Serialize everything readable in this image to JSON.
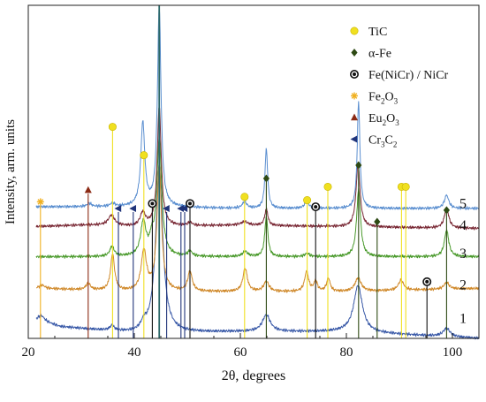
{
  "chart_data": {
    "type": "line",
    "title": "",
    "xlabel": "2θ, degrees",
    "ylabel": "Intensity, arm. units",
    "xlim": [
      20,
      105
    ],
    "x_ticks": [
      20,
      40,
      60,
      80,
      100
    ],
    "y_ticks": "none",
    "grid": false,
    "legend_position": "top-right",
    "series": [
      {
        "name": "1",
        "color": "#3a5aa8",
        "baseline": 0.05,
        "bg": [
          [
            20,
            0.05
          ],
          [
            22,
            0.055
          ],
          [
            26,
            0.035
          ],
          [
            40,
            0.015
          ],
          [
            60,
            0.02
          ],
          [
            80,
            0.02
          ],
          [
            105,
            0.0
          ]
        ],
        "peaks": [
          [
            22.5,
            0.015,
            0.7
          ],
          [
            35.8,
            0.015,
            0.5
          ],
          [
            41.8,
            0.02,
            0.6
          ],
          [
            44.7,
            0.5,
            0.8
          ],
          [
            64.9,
            0.05,
            0.9
          ],
          [
            82.2,
            0.14,
            1.0
          ],
          [
            98.9,
            0.025,
            0.8
          ]
        ]
      },
      {
        "name": "2",
        "color": "#d08a2c",
        "baseline": 0.15,
        "bg": [
          [
            20,
            0.15
          ],
          [
            22,
            0.15
          ],
          [
            40,
            0.14
          ],
          [
            60,
            0.14
          ],
          [
            80,
            0.14
          ],
          [
            105,
            0.15
          ]
        ],
        "peaks": [
          [
            22.6,
            0.01,
            0.6
          ],
          [
            31.3,
            0.02,
            0.5
          ],
          [
            35.9,
            0.11,
            0.45
          ],
          [
            41.8,
            0.12,
            0.6
          ],
          [
            44.7,
            0.38,
            0.5
          ],
          [
            50.5,
            0.06,
            0.5
          ],
          [
            60.9,
            0.07,
            0.5
          ],
          [
            64.9,
            0.03,
            0.6
          ],
          [
            72.5,
            0.06,
            0.45
          ],
          [
            74.2,
            0.03,
            0.4
          ],
          [
            76.6,
            0.04,
            0.4
          ],
          [
            82.2,
            0.04,
            0.7
          ],
          [
            90.3,
            0.03,
            0.6
          ],
          [
            98.9,
            0.02,
            0.6
          ]
        ]
      },
      {
        "name": "3",
        "color": "#4a9a2c",
        "baseline": 0.245,
        "bg": [
          [
            20,
            0.245
          ],
          [
            40,
            0.245
          ],
          [
            60,
            0.245
          ],
          [
            80,
            0.245
          ],
          [
            105,
            0.245
          ]
        ],
        "peaks": [
          [
            35.8,
            0.03,
            0.5
          ],
          [
            41.7,
            0.1,
            0.6
          ],
          [
            43.3,
            0.04,
            0.45
          ],
          [
            44.7,
            0.35,
            0.55
          ],
          [
            50.5,
            0.015,
            0.5
          ],
          [
            60.9,
            0.015,
            0.6
          ],
          [
            64.9,
            0.12,
            0.35
          ],
          [
            72.6,
            0.01,
            0.5
          ],
          [
            82.3,
            0.2,
            0.45
          ],
          [
            98.9,
            0.08,
            0.5
          ]
        ]
      },
      {
        "name": "4",
        "color": "#7a2a36",
        "baseline": 0.33,
        "bg": [
          [
            20,
            0.335
          ],
          [
            30,
            0.34
          ],
          [
            35,
            0.34
          ],
          [
            40,
            0.335
          ],
          [
            60,
            0.34
          ],
          [
            80,
            0.335
          ],
          [
            105,
            0.33
          ]
        ],
        "peaks": [
          [
            35.7,
            0.03,
            0.7
          ],
          [
            41.6,
            0.04,
            0.6
          ],
          [
            44.7,
            0.36,
            0.45
          ],
          [
            50.5,
            0.01,
            0.5
          ],
          [
            60.8,
            0.01,
            0.8
          ],
          [
            64.9,
            0.05,
            0.35
          ],
          [
            82.2,
            0.19,
            0.45
          ],
          [
            98.9,
            0.06,
            0.5
          ]
        ]
      },
      {
        "name": "5",
        "color": "#5b8fd0",
        "baseline": 0.395,
        "bg": [
          [
            20,
            0.395
          ],
          [
            40,
            0.395
          ],
          [
            60,
            0.39
          ],
          [
            80,
            0.39
          ],
          [
            105,
            0.39
          ]
        ],
        "peaks": [
          [
            31.5,
            0.01,
            0.5
          ],
          [
            35.9,
            0.01,
            0.5
          ],
          [
            41.6,
            0.25,
            0.45
          ],
          [
            44.7,
            0.6,
            0.4
          ],
          [
            60.8,
            0.02,
            0.5
          ],
          [
            64.9,
            0.18,
            0.3
          ],
          [
            72.5,
            0.02,
            0.5
          ],
          [
            82.3,
            0.32,
            0.3
          ],
          [
            98.9,
            0.04,
            0.5
          ]
        ]
      }
    ],
    "legend": [
      {
        "label": "TiC",
        "marker": "circle",
        "color": "#f0e020"
      },
      {
        "label": "α-Fe",
        "marker": "diamond",
        "color": "#2e4a14"
      },
      {
        "label": "Fe(NiCr) / NiCr",
        "marker": "ring-dot",
        "color": "#111111"
      },
      {
        "label": "Fe",
        "sub": "2",
        "label2": "O",
        "sub2": "3",
        "marker": "asterisk",
        "color": "#f0b020"
      },
      {
        "label": "Eu",
        "sub": "2",
        "label2": "O",
        "sub2": "3",
        "marker": "triangle",
        "color": "#8b2a14"
      },
      {
        "label": "Cr",
        "sub": "3",
        "label2": "C",
        "sub2": "2",
        "marker": "left-triangle",
        "color": "#20347a"
      }
    ],
    "phase_markers": [
      {
        "phase": "Fe2O3",
        "x": 22.3,
        "top": 0.41,
        "bottom": 0.0,
        "marker": "asterisk",
        "color": "#f0b020"
      },
      {
        "phase": "Eu2O3",
        "x": 31.3,
        "top": 0.445,
        "bottom": 0.0,
        "marker": "triangle",
        "color": "#8b2a14"
      },
      {
        "phase": "TiC",
        "x": 35.9,
        "top": 0.635,
        "bottom": 0.0,
        "marker": "circle",
        "color": "#f0e020"
      },
      {
        "phase": "Cr3C2",
        "x": 37.0,
        "top": 0.39,
        "bottom": 0.0,
        "marker": "left-triangle",
        "color": "#20347a"
      },
      {
        "phase": "Cr3C2",
        "x": 39.8,
        "top": 0.39,
        "bottom": 0.0,
        "marker": "left-triangle",
        "color": "#20347a"
      },
      {
        "phase": "TiC",
        "x": 41.8,
        "top": 0.55,
        "bottom": 0.0,
        "marker": "circle",
        "color": "#f0e020"
      },
      {
        "phase": "Fe(NiCr) / NiCr",
        "x": 43.4,
        "top": 0.405,
        "bottom": 0.0,
        "marker": "ring-dot",
        "color": "#111111"
      },
      {
        "phase": "α-Fe",
        "x": 44.7,
        "top": 1.0,
        "bottom": 0.0,
        "marker": "none",
        "color": "#2e6a6a"
      },
      {
        "phase": "Cr3C2",
        "x": 46.1,
        "top": 0.39,
        "bottom": 0.0,
        "marker": "left-triangle",
        "color": "#20347a"
      },
      {
        "phase": "Cr3C2",
        "x": 48.8,
        "top": 0.39,
        "bottom": 0.0,
        "marker": "left-triangle",
        "color": "#20347a"
      },
      {
        "phase": "Cr3C2",
        "x": 49.5,
        "top": 0.39,
        "bottom": 0.0,
        "marker": "left-triangle",
        "color": "#20347a"
      },
      {
        "phase": "Fe(NiCr) / NiCr",
        "x": 50.5,
        "top": 0.405,
        "bottom": 0.0,
        "marker": "ring-dot",
        "color": "#111111"
      },
      {
        "phase": "TiC",
        "x": 60.8,
        "top": 0.425,
        "bottom": 0.0,
        "marker": "circle",
        "color": "#f0e020"
      },
      {
        "phase": "α-Fe",
        "x": 64.9,
        "top": 0.48,
        "bottom": 0.0,
        "marker": "diamond",
        "color": "#2e4a14"
      },
      {
        "phase": "TiC",
        "x": 72.6,
        "top": 0.415,
        "bottom": 0.0,
        "marker": "circle",
        "color": "#f0e020"
      },
      {
        "phase": "Fe(NiCr) / NiCr",
        "x": 74.2,
        "top": 0.395,
        "bottom": 0.0,
        "marker": "ring-dot",
        "color": "#111111"
      },
      {
        "phase": "TiC",
        "x": 76.5,
        "top": 0.455,
        "bottom": 0.0,
        "marker": "circle",
        "color": "#f0e020"
      },
      {
        "phase": "α-Fe",
        "x": 82.3,
        "top": 0.52,
        "bottom": 0.0,
        "marker": "diamond",
        "color": "#2e4a14"
      },
      {
        "phase": "α-Fe",
        "x": 85.8,
        "top": 0.35,
        "bottom": 0.0,
        "marker": "diamond",
        "color": "#2e4a14"
      },
      {
        "phase": "TiC",
        "x": 90.4,
        "top": 0.455,
        "bottom": 0.0,
        "marker": "circle",
        "color": "#f0e020"
      },
      {
        "phase": "TiC",
        "x": 91.2,
        "top": 0.455,
        "bottom": 0.0,
        "marker": "circle",
        "color": "#f0e020"
      },
      {
        "phase": "Fe(NiCr) / NiCr",
        "x": 95.2,
        "top": 0.17,
        "bottom": 0.0,
        "marker": "ring-dot",
        "color": "#111111"
      },
      {
        "phase": "α-Fe",
        "x": 98.9,
        "top": 0.385,
        "bottom": 0.0,
        "marker": "diamond",
        "color": "#2e4a14"
      }
    ]
  }
}
